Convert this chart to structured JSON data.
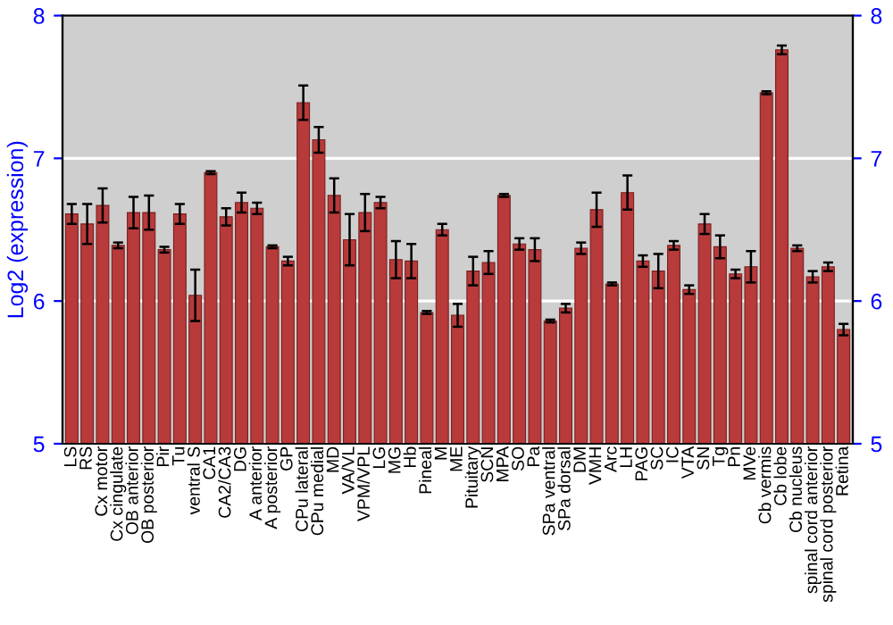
{
  "chart_data": {
    "type": "bar",
    "ylabel": "Log2 (expression)",
    "categories": [
      "LS",
      "RS",
      "Cx motor",
      "Cx cingulate",
      "OB anterior",
      "OB posterior",
      "Pir",
      "Tu",
      "ventral S",
      "CA1",
      "CA2/CA3",
      "DG",
      "A anterior",
      "A posterior",
      "GP",
      "CPu lateral",
      "CPu medial",
      "MD",
      "VA/VL",
      "VPM/VPL",
      "LG",
      "MG",
      "Hb",
      "Pineal",
      "M",
      "ME",
      "Pituitary",
      "SCN",
      "MPA",
      "SO",
      "Pa",
      "SPa ventral",
      "SPa dorsal",
      "DM",
      "VMH",
      "Arc",
      "LH",
      "PAG",
      "SC",
      "IC",
      "VTA",
      "SN",
      "Tg",
      "Pn",
      "MVe",
      "Cb vermis",
      "Cb lobe",
      "Cb nucleus",
      "spinal cord anterior",
      "spinal cord posterior",
      "Retina"
    ],
    "values": [
      6.61,
      6.54,
      6.67,
      6.39,
      6.62,
      6.62,
      6.36,
      6.61,
      6.04,
      6.9,
      6.59,
      6.69,
      6.65,
      6.38,
      6.28,
      7.39,
      7.13,
      6.74,
      6.43,
      6.62,
      6.69,
      6.29,
      6.28,
      5.92,
      6.5,
      5.9,
      6.21,
      6.27,
      6.74,
      6.4,
      6.36,
      5.86,
      5.95,
      6.37,
      6.64,
      6.12,
      6.76,
      6.28,
      6.21,
      6.39,
      6.08,
      6.54,
      6.38,
      6.19,
      6.24,
      7.46,
      7.76,
      6.37,
      6.17,
      6.24,
      5.8
    ],
    "errors": [
      0.07,
      0.14,
      0.12,
      0.02,
      0.11,
      0.12,
      0.02,
      0.07,
      0.18,
      0.01,
      0.06,
      0.07,
      0.04,
      0.01,
      0.03,
      0.12,
      0.09,
      0.12,
      0.18,
      0.13,
      0.04,
      0.13,
      0.12,
      0.01,
      0.04,
      0.08,
      0.1,
      0.08,
      0.01,
      0.04,
      0.08,
      0.01,
      0.03,
      0.04,
      0.12,
      0.01,
      0.12,
      0.04,
      0.12,
      0.03,
      0.03,
      0.07,
      0.08,
      0.03,
      0.11,
      0.01,
      0.03,
      0.02,
      0.04,
      0.03,
      0.04
    ],
    "color": "#b83a3a",
    "ylim": [
      5,
      8
    ],
    "yticks": [
      5,
      6,
      7,
      8
    ],
    "y2lim": [
      5,
      8
    ],
    "y2ticks": [
      5,
      6,
      7,
      8
    ],
    "grid": "y",
    "legend": false
  }
}
